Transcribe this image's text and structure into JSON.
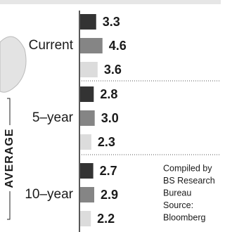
{
  "chart_data": {
    "type": "bar",
    "orientation": "horizontal",
    "categories": [
      "Current",
      "5–year",
      "10–year"
    ],
    "series": [
      {
        "color": "#333333",
        "values": [
          3.3,
          2.8,
          2.7
        ],
        "value_labels": [
          "3.3",
          "2.8",
          "2.7"
        ]
      },
      {
        "color": "#858585",
        "values": [
          4.6,
          3.0,
          2.9
        ],
        "value_labels": [
          "4.6",
          "3.0",
          "2.9"
        ]
      },
      {
        "color": "#dcdcdc",
        "values": [
          3.6,
          2.3,
          2.2
        ],
        "value_labels": [
          "3.6",
          "2.3",
          "2.2"
        ]
      }
    ],
    "annotation": "AVERAGE",
    "note": [
      "Compiled by",
      "BS Research",
      "Bureau",
      "Source:",
      "Bloomberg"
    ]
  }
}
